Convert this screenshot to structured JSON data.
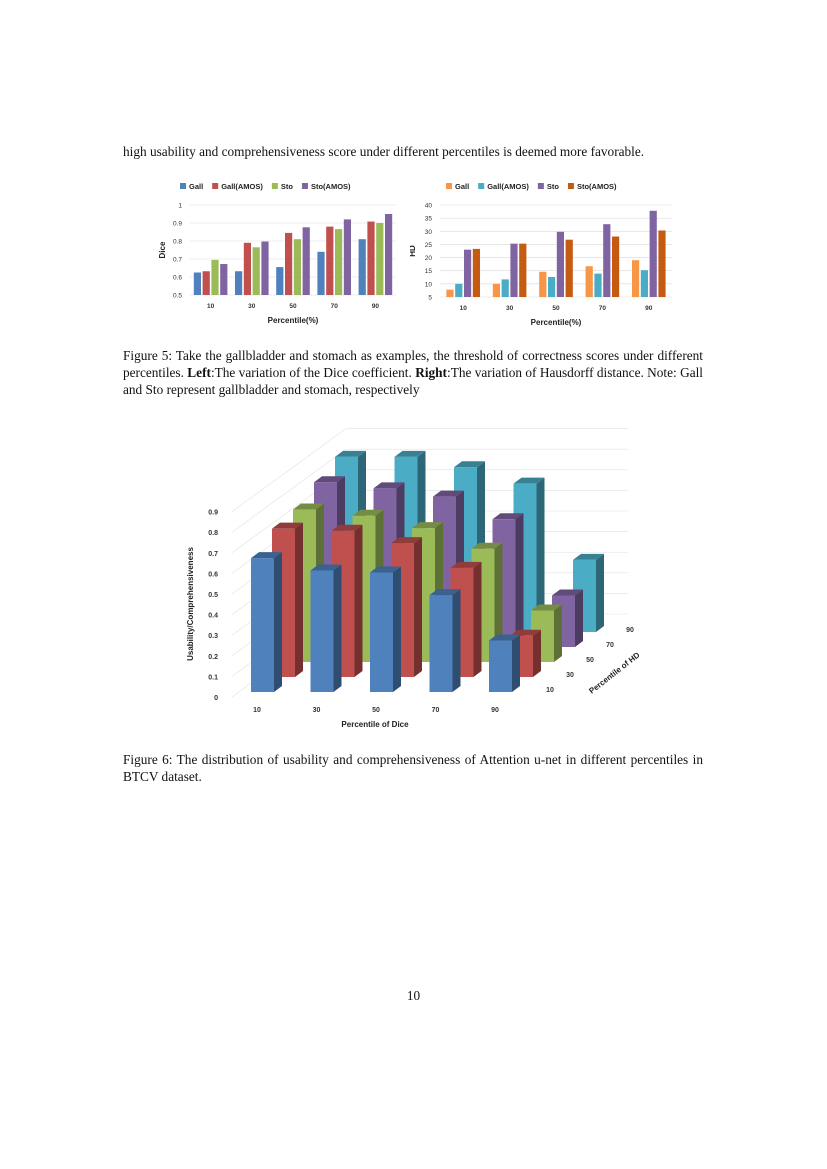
{
  "body_text": "high usability and comprehensiveness score under different percentiles is deemed more favorable.",
  "figure5": {
    "caption_prefix": "Figure 5:  Take the gallbladder and stomach as examples, the threshold of correctness scores under different percentiles. ",
    "left_bold": "Left",
    "left_text": ":The variation of the Dice coefficient. ",
    "right_bold": "Right",
    "right_text": ":The variation of Hausdorff distance. Note: Gall and Sto represent gallbladder and stomach, respectively"
  },
  "figure6": {
    "caption": "Figure 6:  The distribution of usability and comprehensiveness of Attention u-net in different percentiles in BTCV dataset."
  },
  "page_number": "10",
  "chart_data": [
    {
      "type": "bar",
      "categories": [
        "10",
        "30",
        "50",
        "70",
        "90"
      ],
      "xlabel": "Percentile(%)",
      "ylabel": "Dice",
      "ylim": [
        0.5,
        1
      ],
      "yticks": [
        "0.5",
        "0.6",
        "0.7",
        "0.8",
        "0.9",
        "1"
      ],
      "grid": true,
      "legend": "top",
      "series": [
        {
          "name": "Gall",
          "color": "#4f81bd",
          "values": [
            0.625,
            0.632,
            0.655,
            0.74,
            0.81
          ]
        },
        {
          "name": "Gall(AMOS)",
          "color": "#c0504d",
          "values": [
            0.632,
            0.79,
            0.845,
            0.88,
            0.908
          ]
        },
        {
          "name": "Sto",
          "color": "#9bbb59",
          "values": [
            0.695,
            0.765,
            0.81,
            0.866,
            0.9
          ]
        },
        {
          "name": "Sto(AMOS)",
          "color": "#8064a2",
          "values": [
            0.672,
            0.797,
            0.876,
            0.92,
            0.95
          ]
        }
      ]
    },
    {
      "type": "bar",
      "categories": [
        "10",
        "30",
        "50",
        "70",
        "90"
      ],
      "xlabel": "Percentile(%)",
      "ylabel": "HD",
      "ylim": [
        5,
        40
      ],
      "yticks": [
        "5",
        "10",
        "15",
        "20",
        "25",
        "30",
        "35",
        "40"
      ],
      "grid": true,
      "legend": "top",
      "series": [
        {
          "name": "Gall",
          "color": "#f79646",
          "values": [
            7.8,
            10,
            14.6,
            16.7,
            19
          ]
        },
        {
          "name": "Gall(AMOS)",
          "color": "#4bacc6",
          "values": [
            10,
            11.7,
            12.6,
            13.9,
            15.2
          ]
        },
        {
          "name": "Sto",
          "color": "#8064a2",
          "values": [
            23,
            25.3,
            29.8,
            32.7,
            37.8
          ]
        },
        {
          "name": "Sto(AMOS)",
          "color": "#c55a11",
          "values": [
            23.3,
            25.3,
            26.8,
            28,
            30.3
          ]
        }
      ]
    },
    {
      "type": "bar3d",
      "x_categories": [
        "10",
        "30",
        "50",
        "70",
        "90"
      ],
      "depth_categories": [
        "10",
        "30",
        "50",
        "70",
        "90"
      ],
      "xlabel": "Percentile of Dice",
      "ylabel": "Usability/Comprehensiveness",
      "depth_label": "Percentile of HD",
      "ylim": [
        0,
        0.9
      ],
      "yticks": [
        "0",
        "0.1",
        "0.2",
        "0.3",
        "0.4",
        "0.5",
        "0.6",
        "0.7",
        "0.8",
        "0.9"
      ],
      "grid": true,
      "series": [
        {
          "color": "#4f81bd",
          "values": [
            0.65,
            0.59,
            0.58,
            0.47,
            0.25
          ]
        },
        {
          "color": "#c0504d",
          "values": [
            0.72,
            0.71,
            0.65,
            0.53,
            0.2
          ]
        },
        {
          "color": "#9bbb59",
          "values": [
            0.74,
            0.71,
            0.65,
            0.55,
            0.25
          ]
        },
        {
          "color": "#8064a2",
          "values": [
            0.8,
            0.77,
            0.73,
            0.62,
            0.25
          ]
        },
        {
          "color": "#4bacc6",
          "values": [
            0.85,
            0.85,
            0.8,
            0.72,
            0.35
          ]
        }
      ]
    }
  ]
}
